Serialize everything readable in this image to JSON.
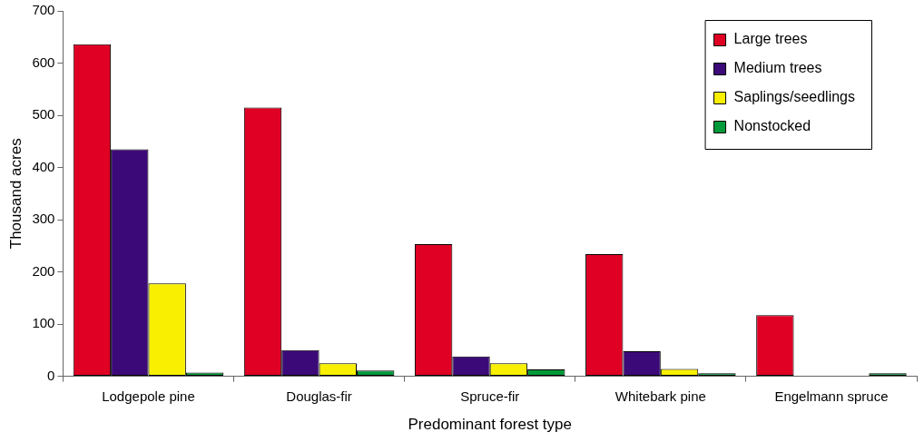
{
  "chart_data": {
    "type": "bar",
    "xlabel": "Predominant forest type",
    "ylabel": "Thousand acres",
    "categories": [
      "Lodgepole pine",
      "Douglas-fir",
      "Spruce-fir",
      "Whitebark pine",
      "Engelmann spruce"
    ],
    "series": [
      {
        "name": "Large trees",
        "color": "#e00024",
        "values": [
          636,
          515,
          253,
          234,
          117
        ]
      },
      {
        "name": "Medium trees",
        "color": "#3c0a78",
        "values": [
          435,
          50,
          38,
          48,
          0
        ]
      },
      {
        "name": "Saplings/seedlings",
        "color": "#f8f000",
        "values": [
          178,
          25,
          25,
          14,
          0
        ]
      },
      {
        "name": "Nonstocked",
        "color": "#009a3a",
        "values": [
          7,
          11,
          13,
          6,
          6
        ]
      }
    ],
    "ylim": [
      0,
      700
    ],
    "yticks": [
      0,
      100,
      200,
      300,
      400,
      500,
      600,
      700
    ],
    "grid": false,
    "legend": "top right"
  }
}
